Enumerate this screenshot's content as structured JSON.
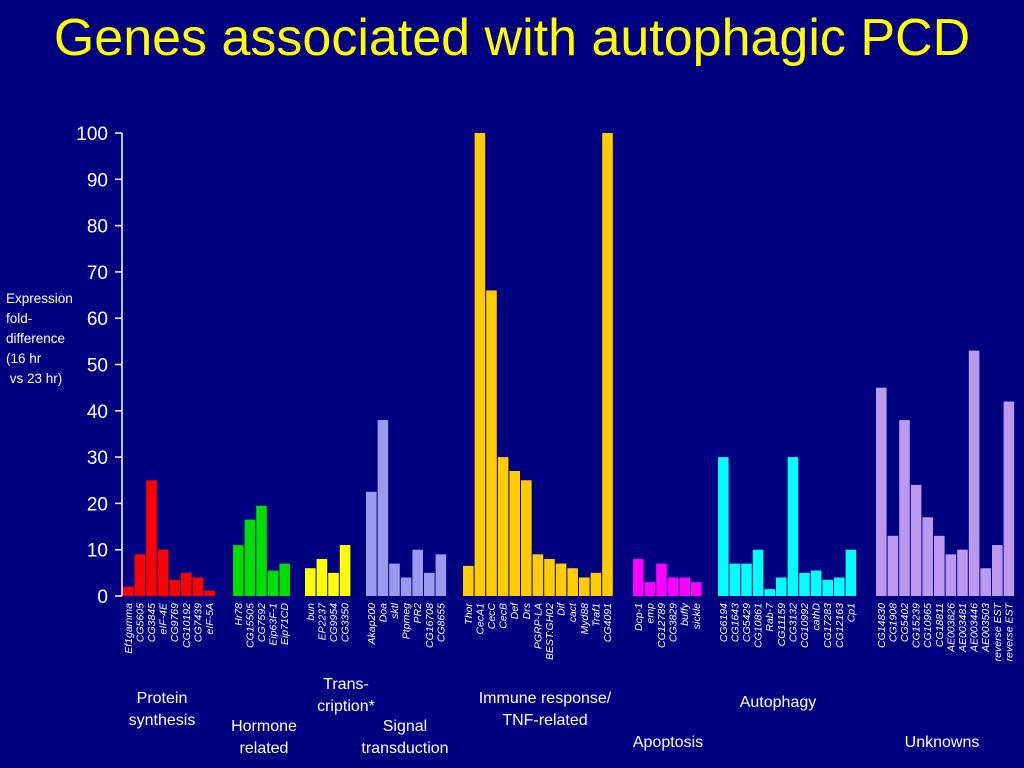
{
  "title": "Genes associated with autophagic PCD",
  "chart_data": {
    "type": "bar",
    "ylabel": "Expression\nfold-\ndifference\n(16 hr\n vs 23 hr)",
    "ylim": [
      0,
      100
    ],
    "yticks": [
      0,
      10,
      20,
      30,
      40,
      50,
      60,
      70,
      80,
      90,
      100
    ],
    "grid": false,
    "groups": [
      {
        "label": "Protein\nsynthesis",
        "color": "#ff0000",
        "categories": [
          "Ef1gamma",
          "CG5605",
          "CG3845",
          "eIF-4E",
          "CG9769",
          "CG10192",
          "CG7439",
          "eIF-5A"
        ],
        "values": [
          2,
          9,
          25,
          10,
          3.5,
          5,
          4,
          1.2
        ]
      },
      {
        "label": "Hormone\nrelated",
        "color": "#00dd00",
        "categories": [
          "Hr78",
          "CG15505",
          "CG7592",
          "Eip63F-1",
          "Eip71CD"
        ],
        "values": [
          11,
          16.5,
          19.5,
          5.5,
          7
        ]
      },
      {
        "label": "Trans-\ncription*",
        "color": "#ffff00",
        "categories": [
          "bun",
          "EP2237",
          "CG9954",
          "CG3350"
        ],
        "values": [
          6,
          8,
          5,
          11
        ]
      },
      {
        "label": "Signal\ntransduction",
        "color": "#9999ee",
        "categories": [
          "Akap200",
          "Doa",
          "sktl",
          "Ptpmeg",
          "PR2",
          "CG16708",
          "CG8655"
        ],
        "values": [
          22.5,
          38,
          7,
          4,
          10,
          5,
          9
        ]
      },
      {
        "label": "Immune response/\nTNF-related",
        "color": "#ffcc00",
        "categories": [
          "Thor",
          "CecA1",
          "CecC",
          "CecB",
          "Def",
          "Drs",
          "PGRP-LA",
          "BEST:GH02",
          "Dif",
          "cact",
          "Myd88",
          "Traf1",
          "CG4091"
        ],
        "values": [
          6.5,
          100,
          66,
          30,
          27,
          25,
          9,
          8,
          7,
          6,
          4,
          5,
          100
        ]
      },
      {
        "label": "Apoptosis",
        "color": "#ff00ff",
        "categories": [
          "Dcp-1",
          "emp",
          "CG12789",
          "CG3829",
          "buffy",
          "sickle"
        ],
        "values": [
          8,
          3,
          7,
          4,
          4,
          3
        ]
      },
      {
        "label": "Autophagy",
        "color": "#00ffff",
        "categories": [
          "CG6194",
          "CG1643",
          "CG5429",
          "CG10861",
          "Rab-7",
          "CG11159",
          "CG3132",
          "CG10992",
          "cathD",
          "CG17283",
          "CG12163",
          "Cp1"
        ],
        "values": [
          30,
          7,
          7,
          10,
          1.5,
          4,
          30,
          5,
          5.5,
          3.5,
          4,
          10
        ]
      },
      {
        "label": "Unknowns",
        "color": "#bb99ee",
        "categories": [
          "CG14830",
          "CG1908",
          "CG5402",
          "CG15239",
          "CG10965",
          "CG18811",
          "AE003826",
          "AE003481",
          "AE003446",
          "AE003503",
          "reverse EST",
          "reverse EST"
        ],
        "values": [
          45,
          13,
          38,
          24,
          17,
          13,
          9,
          10,
          53,
          6,
          11,
          42
        ]
      }
    ]
  }
}
